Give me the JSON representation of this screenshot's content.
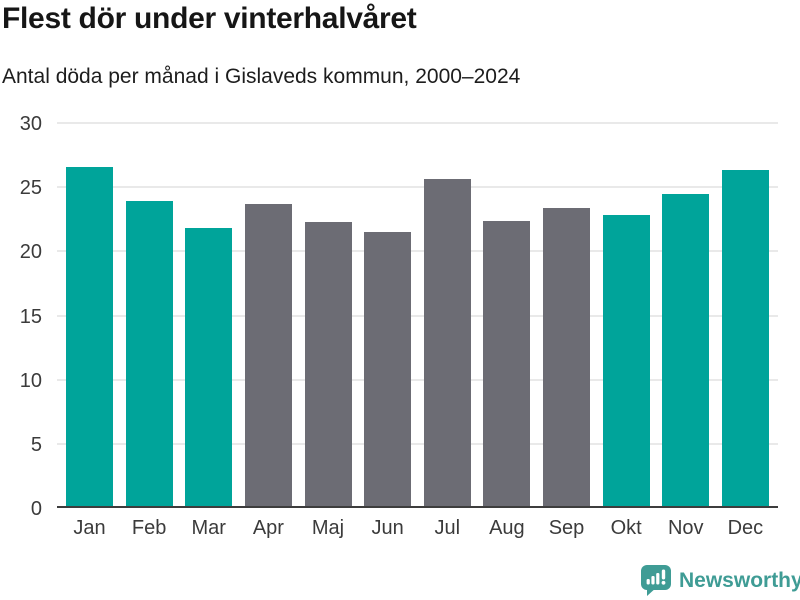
{
  "title": "Flest dör under vinterhalvåret",
  "subtitle": "Antal döda per månad i Gislaveds kommun, 2000–2024",
  "footer": {
    "brand": "Newsworthy"
  },
  "colors": {
    "highlight_teal": "#00a49a",
    "muted_gray": "#6c6c74",
    "gridline": "#e9e9e9",
    "axis_line": "#3d3d3d",
    "axis_text": "#3b3b3b",
    "logo_teal": "#3f9c95"
  },
  "chart_data": {
    "type": "bar",
    "title": "Flest dör under vinterhalvåret",
    "subtitle": "Antal döda per månad i Gislaveds kommun, 2000–2024",
    "categories": [
      "Jan",
      "Feb",
      "Mar",
      "Apr",
      "Maj",
      "Jun",
      "Jul",
      "Aug",
      "Sep",
      "Okt",
      "Nov",
      "Dec"
    ],
    "values": [
      26.6,
      23.9,
      21.8,
      23.7,
      22.3,
      21.5,
      25.6,
      22.4,
      23.4,
      22.8,
      24.5,
      26.3
    ],
    "bar_colors": [
      "#00a49a",
      "#00a49a",
      "#00a49a",
      "#6c6c74",
      "#6c6c74",
      "#6c6c74",
      "#6c6c74",
      "#6c6c74",
      "#6c6c74",
      "#00a49a",
      "#00a49a",
      "#00a49a"
    ],
    "xlabel": "",
    "ylabel": "",
    "ylim": [
      0,
      30
    ],
    "yticks": [
      0,
      5,
      10,
      15,
      20,
      25,
      30
    ],
    "grid": true,
    "legend": false
  }
}
